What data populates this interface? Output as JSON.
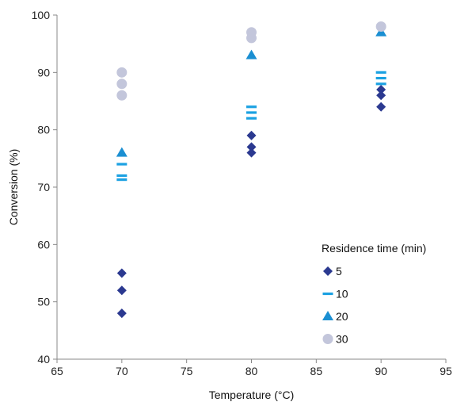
{
  "chart_data": {
    "type": "scatter",
    "title": "",
    "xlabel": "Temperature (°C)",
    "ylabel": "Conversion (%)",
    "xlim": [
      65,
      95
    ],
    "ylim": [
      40,
      100
    ],
    "x_ticks": [
      65,
      70,
      75,
      80,
      85,
      90,
      95
    ],
    "y_ticks": [
      40,
      50,
      60,
      70,
      80,
      90,
      100
    ],
    "grid": false,
    "legend": {
      "title": "Residence time (min)",
      "placement": "lower-right"
    },
    "series": [
      {
        "name": "5",
        "marker": "diamond",
        "color": "#2B3990",
        "points": [
          [
            70,
            55
          ],
          [
            70,
            52
          ],
          [
            70,
            48
          ],
          [
            80,
            79
          ],
          [
            80,
            77
          ],
          [
            80,
            76
          ],
          [
            90,
            87
          ],
          [
            90,
            86
          ],
          [
            90,
            84
          ]
        ]
      },
      {
        "name": "10",
        "marker": "dash",
        "color": "#1BA1E2",
        "points": [
          [
            70,
            74
          ],
          [
            70,
            72
          ],
          [
            70,
            71.3
          ],
          [
            80,
            84
          ],
          [
            80,
            83
          ],
          [
            80,
            82
          ],
          [
            90,
            90
          ],
          [
            90,
            89
          ],
          [
            90,
            88
          ]
        ]
      },
      {
        "name": "20",
        "marker": "triangle",
        "color": "#1B8FD2",
        "points": [
          [
            70,
            76
          ],
          [
            80,
            93
          ],
          [
            90,
            97
          ]
        ]
      },
      {
        "name": "30",
        "marker": "circle",
        "color": "#C3C6DB",
        "points": [
          [
            70,
            90
          ],
          [
            70,
            88
          ],
          [
            70,
            86
          ],
          [
            80,
            97
          ],
          [
            80,
            96
          ],
          [
            90,
            98
          ]
        ]
      }
    ]
  }
}
